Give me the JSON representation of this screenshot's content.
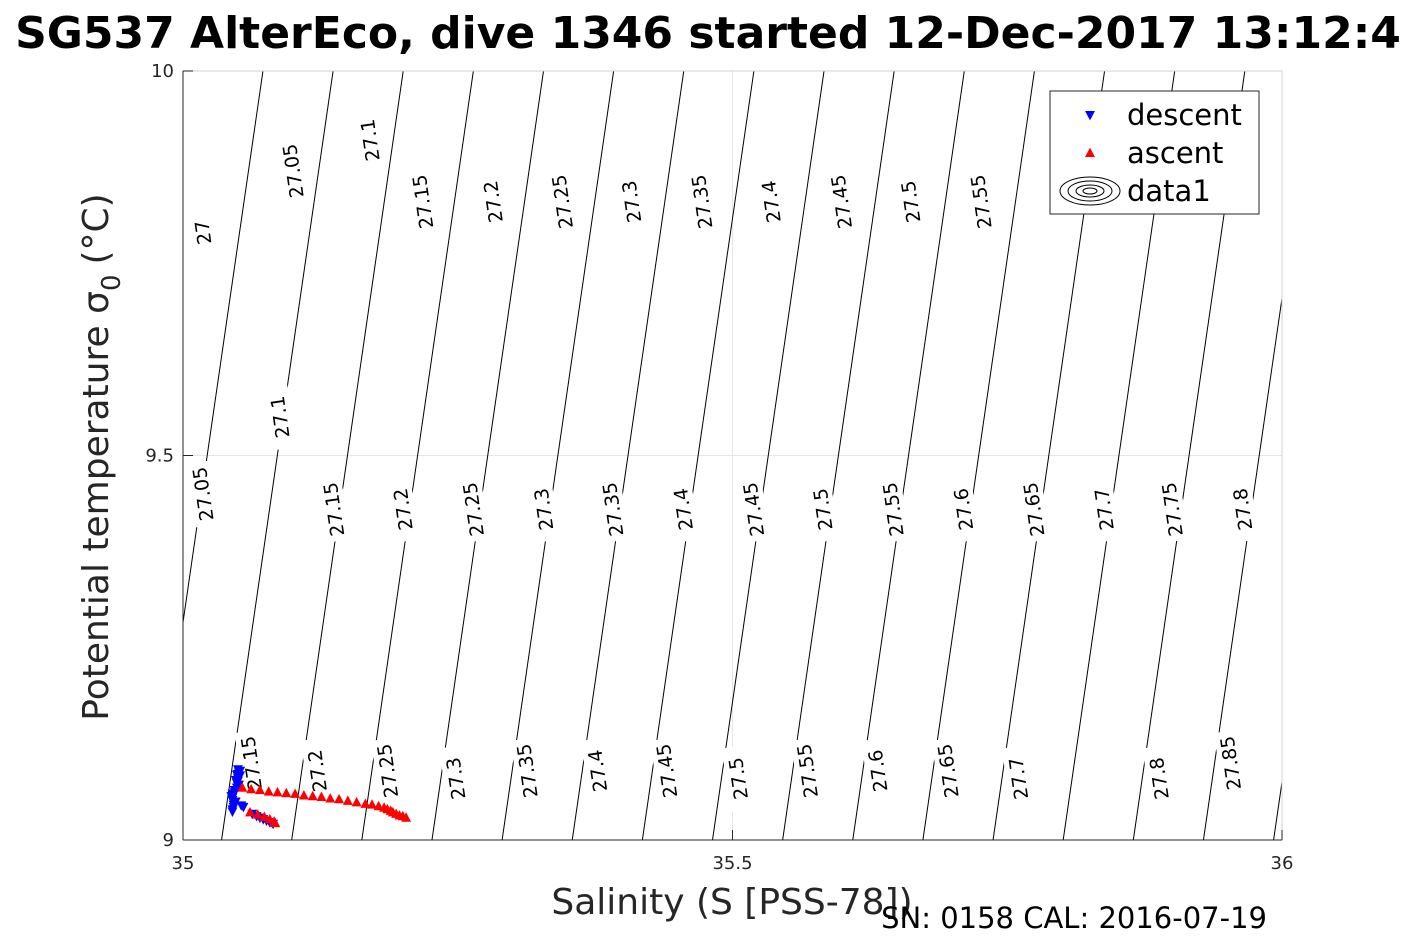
{
  "chart_data": {
    "type": "scatter",
    "title": "SG537 AlterEco, dive 1346 started 12-Dec-2017 13:12:4",
    "xlabel": "Salinity (S [PSS-78])",
    "ylabel": "Potential temperature σ",
    "ylabel_sub": "0",
    "ylabel_unit": "(°C)",
    "xlim": [
      35,
      36
    ],
    "ylim": [
      9,
      10
    ],
    "xticks": [
      35,
      35.5,
      36
    ],
    "xtick_labels": [
      "35",
      "35.5",
      "36"
    ],
    "yticks": [
      9,
      9.5,
      10
    ],
    "ytick_labels": [
      "9",
      "9.5",
      "10"
    ],
    "grid": true,
    "legend_position": "top-right",
    "contour_levels": [
      {
        "value": 27.0,
        "label": "27"
      },
      {
        "value": 27.05,
        "label": "27.05"
      },
      {
        "value": 27.1,
        "label": "27.1"
      },
      {
        "value": 27.15,
        "label": "27.15"
      },
      {
        "value": 27.2,
        "label": "27.2"
      },
      {
        "value": 27.25,
        "label": "27.25"
      },
      {
        "value": 27.3,
        "label": "27.3"
      },
      {
        "value": 27.35,
        "label": "27.35"
      },
      {
        "value": 27.4,
        "label": "27.4"
      },
      {
        "value": 27.45,
        "label": "27.45"
      },
      {
        "value": 27.5,
        "label": "27.5"
      },
      {
        "value": 27.55,
        "label": "27.55"
      },
      {
        "value": 27.6,
        "label": "27.6"
      },
      {
        "value": 27.65,
        "label": "27.65"
      },
      {
        "value": 27.7,
        "label": "27.7"
      },
      {
        "value": 27.75,
        "label": "27.75"
      },
      {
        "value": 27.8,
        "label": "27.8"
      },
      {
        "value": 27.85,
        "label": "27.85"
      }
    ],
    "contour_labels": [
      {
        "label": "27",
        "s": 35.018,
        "t": 9.79
      },
      {
        "label": "27.05",
        "s": 35.1,
        "t": 9.87
      },
      {
        "label": "27.1",
        "s": 35.17,
        "t": 9.91
      },
      {
        "label": "27.15",
        "s": 35.218,
        "t": 9.83
      },
      {
        "label": "27.2",
        "s": 35.282,
        "t": 9.83
      },
      {
        "label": "27.25",
        "s": 35.345,
        "t": 9.83
      },
      {
        "label": "27.3",
        "s": 35.408,
        "t": 9.83
      },
      {
        "label": "27.35",
        "s": 35.472,
        "t": 9.83
      },
      {
        "label": "27.4",
        "s": 35.535,
        "t": 9.83
      },
      {
        "label": "27.45",
        "s": 35.599,
        "t": 9.83
      },
      {
        "label": "27.5",
        "s": 35.662,
        "t": 9.83
      },
      {
        "label": "27.55",
        "s": 35.726,
        "t": 9.83
      },
      {
        "label": "27.05",
        "s": 35.018,
        "t": 9.45
      },
      {
        "label": "27.1",
        "s": 35.088,
        "t": 9.55
      },
      {
        "label": "27.15",
        "s": 35.137,
        "t": 9.43
      },
      {
        "label": "27.2",
        "s": 35.2,
        "t": 9.43
      },
      {
        "label": "27.25",
        "s": 35.264,
        "t": 9.43
      },
      {
        "label": "27.3",
        "s": 35.328,
        "t": 9.43
      },
      {
        "label": "27.35",
        "s": 35.391,
        "t": 9.43
      },
      {
        "label": "27.4",
        "s": 35.455,
        "t": 9.43
      },
      {
        "label": "27.45",
        "s": 35.519,
        "t": 9.43
      },
      {
        "label": "27.5",
        "s": 35.582,
        "t": 9.43
      },
      {
        "label": "27.55",
        "s": 35.646,
        "t": 9.43
      },
      {
        "label": "27.6",
        "s": 35.71,
        "t": 9.43
      },
      {
        "label": "27.65",
        "s": 35.774,
        "t": 9.43
      },
      {
        "label": "27.7",
        "s": 35.838,
        "t": 9.43
      },
      {
        "label": "27.75",
        "s": 35.9,
        "t": 9.43
      },
      {
        "label": "27.8",
        "s": 35.964,
        "t": 9.43
      },
      {
        "label": "27.15",
        "s": 35.062,
        "t": 9.1
      },
      {
        "label": "27.2",
        "s": 35.122,
        "t": 9.09
      },
      {
        "label": "27.25",
        "s": 35.186,
        "t": 9.09
      },
      {
        "label": "27.3",
        "s": 35.248,
        "t": 9.08
      },
      {
        "label": "27.35",
        "s": 35.313,
        "t": 9.09
      },
      {
        "label": "27.4",
        "s": 35.377,
        "t": 9.09
      },
      {
        "label": "27.45",
        "s": 35.44,
        "t": 9.09
      },
      {
        "label": "27.5",
        "s": 35.505,
        "t": 9.08
      },
      {
        "label": "27.55",
        "s": 35.568,
        "t": 9.09
      },
      {
        "label": "27.6",
        "s": 35.632,
        "t": 9.09
      },
      {
        "label": "27.65",
        "s": 35.696,
        "t": 9.09
      },
      {
        "label": "27.7",
        "s": 35.76,
        "t": 9.08
      },
      {
        "label": "27.8",
        "s": 35.888,
        "t": 9.08
      },
      {
        "label": "27.85",
        "s": 35.953,
        "t": 9.1
      }
    ],
    "series": [
      {
        "name": "descent",
        "marker": "triangle-down",
        "color": "#0000ff",
        "points": [
          [
            35.045,
            9.037
          ],
          [
            35.045,
            9.04
          ],
          [
            35.046,
            9.043
          ],
          [
            35.046,
            9.046
          ],
          [
            35.046,
            9.049
          ],
          [
            35.045,
            9.052
          ],
          [
            35.045,
            9.055
          ],
          [
            35.044,
            9.057
          ],
          [
            35.045,
            9.06
          ],
          [
            35.047,
            9.062
          ],
          [
            35.048,
            9.065
          ],
          [
            35.049,
            9.068
          ],
          [
            35.05,
            9.07
          ],
          [
            35.051,
            9.072
          ],
          [
            35.049,
            9.074
          ],
          [
            35.05,
            9.077
          ],
          [
            35.05,
            9.08
          ],
          [
            35.051,
            9.082
          ],
          [
            35.052,
            9.084
          ],
          [
            35.05,
            9.086
          ],
          [
            35.051,
            9.088
          ],
          [
            35.052,
            9.09
          ],
          [
            35.05,
            9.092
          ],
          [
            35.049,
            9.085
          ],
          [
            35.048,
            9.078
          ],
          [
            35.047,
            9.065
          ],
          [
            35.048,
            9.05
          ],
          [
            35.053,
            9.045
          ],
          [
            35.055,
            9.043
          ],
          [
            35.063,
            9.034
          ],
          [
            35.067,
            9.031
          ],
          [
            35.07,
            9.029
          ],
          [
            35.073,
            9.027
          ],
          [
            35.076,
            9.025
          ],
          [
            35.079,
            9.023
          ],
          [
            35.082,
            9.021
          ]
        ]
      },
      {
        "name": "ascent",
        "marker": "triangle-up",
        "color": "#ff0000",
        "points": [
          [
            35.054,
            9.068
          ],
          [
            35.062,
            9.066
          ],
          [
            35.07,
            9.065
          ],
          [
            35.078,
            9.063
          ],
          [
            35.086,
            9.062
          ],
          [
            35.094,
            9.061
          ],
          [
            35.102,
            9.06
          ],
          [
            35.11,
            9.058
          ],
          [
            35.118,
            9.057
          ],
          [
            35.126,
            9.056
          ],
          [
            35.134,
            9.054
          ],
          [
            35.142,
            9.053
          ],
          [
            35.15,
            9.051
          ],
          [
            35.158,
            9.049
          ],
          [
            35.166,
            9.047
          ],
          [
            35.172,
            9.046
          ],
          [
            35.178,
            9.044
          ],
          [
            35.183,
            9.042
          ],
          [
            35.186,
            9.04
          ],
          [
            35.189,
            9.038
          ],
          [
            35.191,
            9.036
          ],
          [
            35.194,
            9.034
          ],
          [
            35.197,
            9.032
          ],
          [
            35.2,
            9.031
          ],
          [
            35.203,
            9.029
          ],
          [
            35.061,
            9.036
          ],
          [
            35.068,
            9.033
          ],
          [
            35.074,
            9.03
          ],
          [
            35.079,
            9.027
          ],
          [
            35.083,
            9.024
          ],
          [
            35.084,
            9.022
          ]
        ]
      },
      {
        "name": "data1",
        "marker": "contour",
        "color": "#000000"
      }
    ]
  },
  "footer": {
    "text": "SN: 0158  CAL: 2016-07-19"
  }
}
